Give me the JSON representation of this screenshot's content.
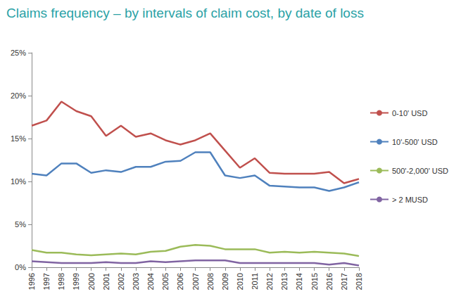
{
  "chart_data": {
    "type": "line",
    "title": "Claims frequency – by intervals of claim cost, by date of loss",
    "categories": [
      "1996",
      "1997",
      "1998",
      "1999",
      "2000",
      "2001",
      "2002",
      "2003",
      "2004",
      "2005",
      "2006",
      "2007",
      "2008",
      "2009",
      "2010",
      "2011",
      "2012",
      "2013",
      "2014",
      "2015",
      "2016",
      "2017",
      "2018"
    ],
    "series": [
      {
        "name": "0-10' USD",
        "color": "#c0504d",
        "values": [
          16.5,
          17.1,
          19.3,
          18.2,
          17.6,
          15.3,
          16.5,
          15.2,
          15.6,
          14.8,
          14.3,
          14.8,
          15.6,
          13.6,
          11.6,
          12.7,
          11.0,
          10.9,
          10.9,
          10.9,
          11.1,
          9.8,
          10.3
        ]
      },
      {
        "name": "10'-500' USD",
        "color": "#4f81bd",
        "values": [
          10.9,
          10.7,
          12.1,
          12.1,
          11.0,
          11.3,
          11.1,
          11.7,
          11.7,
          12.3,
          12.4,
          13.4,
          13.4,
          10.7,
          10.4,
          10.7,
          9.5,
          9.4,
          9.3,
          9.3,
          8.9,
          9.3,
          9.9
        ]
      },
      {
        "name": "500'-2,000' USD",
        "color": "#9bbb59",
        "values": [
          2.0,
          1.7,
          1.7,
          1.5,
          1.4,
          1.5,
          1.6,
          1.5,
          1.8,
          1.9,
          2.4,
          2.6,
          2.5,
          2.1,
          2.1,
          2.1,
          1.7,
          1.8,
          1.7,
          1.8,
          1.7,
          1.6,
          1.3
        ]
      },
      {
        "name": "> 2 MUSD",
        "color": "#8064a2",
        "values": [
          0.7,
          0.6,
          0.5,
          0.5,
          0.5,
          0.6,
          0.5,
          0.5,
          0.7,
          0.6,
          0.7,
          0.8,
          0.8,
          0.8,
          0.5,
          0.5,
          0.5,
          0.5,
          0.5,
          0.5,
          0.3,
          0.5,
          0.2
        ]
      }
    ],
    "ylim": [
      0,
      25
    ],
    "yticks": [
      {
        "value": 0,
        "label": "0%"
      },
      {
        "value": 5,
        "label": "5%"
      },
      {
        "value": 10,
        "label": "10%"
      },
      {
        "value": 15,
        "label": "15%"
      },
      {
        "value": 20,
        "label": "20%"
      },
      {
        "value": 25,
        "label": "25%"
      }
    ],
    "grid": false,
    "legend": "right"
  }
}
